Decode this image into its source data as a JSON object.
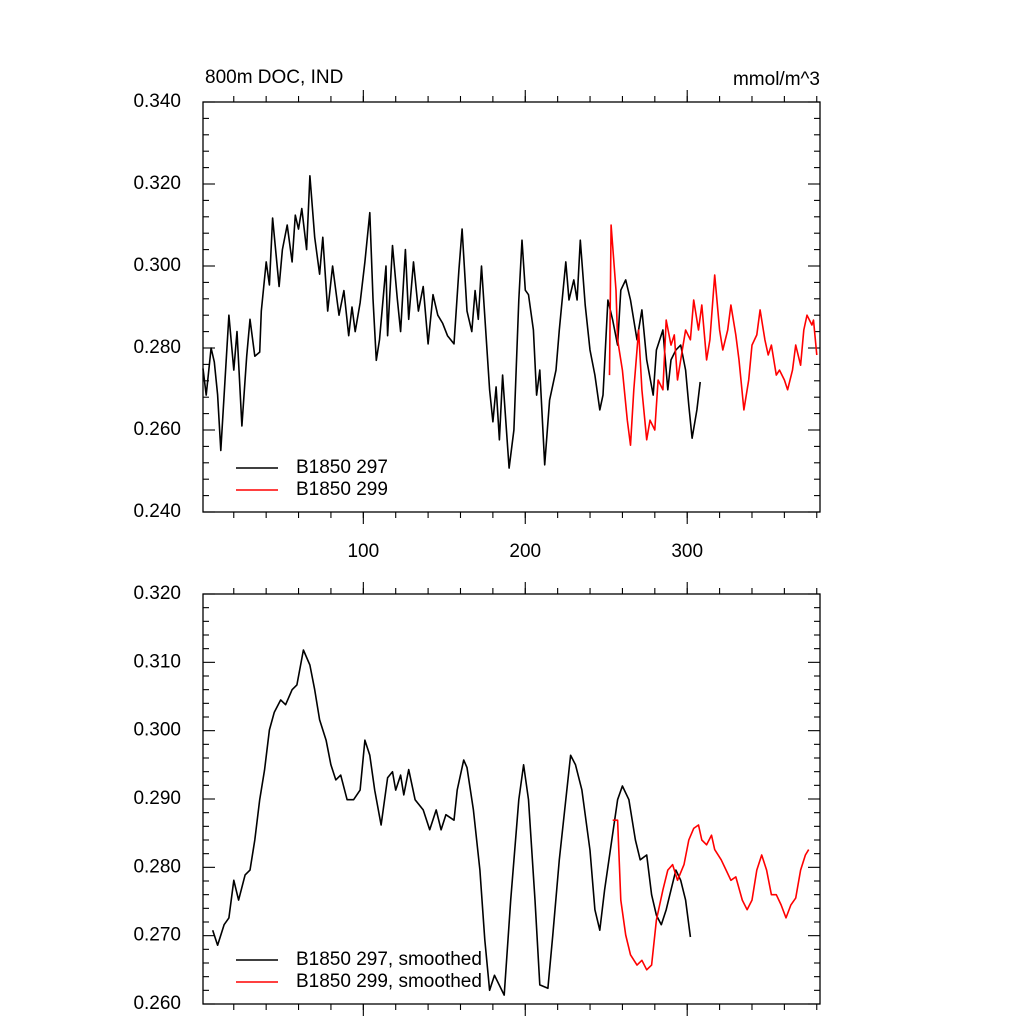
{
  "chart_data": [
    {
      "type": "line",
      "title": "800m DOC, IND",
      "units_label": "mmol/m^3",
      "xlim": [
        1,
        382
      ],
      "xticks": [
        100,
        200,
        300
      ],
      "show_xtick_labels": true,
      "ylim": [
        0.24,
        0.34
      ],
      "yticks": [
        {
          "value": 0.24,
          "label": "0.240"
        },
        {
          "value": 0.26,
          "label": "0.260"
        },
        {
          "value": 0.28,
          "label": "0.280"
        },
        {
          "value": 0.3,
          "label": "0.300"
        },
        {
          "value": 0.32,
          "label": "0.320"
        },
        {
          "value": 0.34,
          "label": "0.340"
        }
      ],
      "legend": "lower left",
      "series": [
        {
          "name": "B1850 297",
          "color": "#000000",
          "x": [
            1,
            3,
            6,
            8,
            10,
            12,
            17,
            20,
            22,
            25,
            28,
            30,
            33,
            36,
            37,
            40,
            42,
            44,
            48,
            50,
            53,
            56,
            58,
            60,
            62,
            65,
            67,
            70,
            73,
            75,
            78,
            81,
            85,
            88,
            91,
            93,
            95,
            98,
            101,
            104,
            106,
            108,
            110,
            114,
            115,
            118,
            121,
            123,
            126,
            128,
            131,
            134,
            137,
            140,
            143,
            146,
            149,
            152,
            156,
            159,
            161,
            164,
            167,
            169,
            171,
            173,
            178,
            180,
            182,
            184,
            186,
            190,
            193,
            196,
            198,
            200,
            202,
            205,
            207,
            209,
            212,
            215,
            219,
            221,
            225,
            227,
            230,
            232,
            234,
            237,
            240,
            243,
            246,
            248,
            251,
            254,
            257,
            259,
            262,
            265,
            269,
            272,
            275,
            279,
            281,
            285,
            288,
            290,
            293,
            296,
            299,
            301,
            303,
            306,
            308
          ],
          "values": [
            0.275,
            0.2685,
            0.28,
            0.2766,
            0.2686,
            0.255,
            0.288,
            0.2746,
            0.284,
            0.261,
            0.278,
            0.287,
            0.278,
            0.279,
            0.289,
            0.301,
            0.2954,
            0.3117,
            0.295,
            0.304,
            0.31,
            0.301,
            0.3124,
            0.309,
            0.314,
            0.304,
            0.322,
            0.307,
            0.298,
            0.307,
            0.289,
            0.3,
            0.288,
            0.294,
            0.283,
            0.29,
            0.284,
            0.291,
            0.301,
            0.313,
            0.292,
            0.277,
            0.282,
            0.3,
            0.283,
            0.305,
            0.292,
            0.284,
            0.304,
            0.287,
            0.301,
            0.289,
            0.295,
            0.281,
            0.293,
            0.288,
            0.286,
            0.283,
            0.281,
            0.299,
            0.309,
            0.289,
            0.284,
            0.294,
            0.287,
            0.3,
            0.2698,
            0.262,
            0.2705,
            0.2576,
            0.2734,
            0.2507,
            0.26,
            0.2917,
            0.3063,
            0.2941,
            0.293,
            0.2844,
            0.2685,
            0.2746,
            0.2515,
            0.2673,
            0.2746,
            0.2844,
            0.301,
            0.2917,
            0.2966,
            0.2917,
            0.3063,
            0.2905,
            0.2795,
            0.2734,
            0.2649,
            0.2685,
            0.2917,
            0.2868,
            0.2807,
            0.2941,
            0.2966,
            0.2917,
            0.282,
            0.2893,
            0.2771,
            0.2685,
            0.2795,
            0.2844,
            0.2698,
            0.2771,
            0.2795,
            0.2807,
            0.2746,
            0.266,
            0.258,
            0.2649,
            0.2717
          ]
        },
        {
          "name": "B1850 299",
          "color": "#ff0000",
          "x": [
            252,
            253,
            256,
            257,
            260,
            263,
            265,
            267,
            270,
            272,
            275,
            277,
            280,
            282,
            285,
            287,
            290,
            292,
            294,
            297,
            299,
            302,
            304,
            307,
            309,
            312,
            314,
            317,
            320,
            322,
            325,
            327,
            330,
            332,
            335,
            338,
            340,
            343,
            345,
            348,
            350,
            352,
            355,
            357,
            360,
            362,
            365,
            367,
            370,
            372,
            374,
            377,
            378,
            380
          ],
          "values": [
            0.2734,
            0.31,
            0.2941,
            0.282,
            0.2746,
            0.2624,
            0.2563,
            0.2698,
            0.2844,
            0.2698,
            0.2576,
            0.2624,
            0.26,
            0.2722,
            0.2698,
            0.2868,
            0.2807,
            0.2832,
            0.2722,
            0.2795,
            0.2844,
            0.282,
            0.2917,
            0.2844,
            0.2905,
            0.2771,
            0.282,
            0.2978,
            0.2844,
            0.2795,
            0.2844,
            0.2905,
            0.2832,
            0.2771,
            0.2649,
            0.2722,
            0.2807,
            0.2832,
            0.2893,
            0.282,
            0.2783,
            0.2807,
            0.2734,
            0.2746,
            0.2722,
            0.2698,
            0.2746,
            0.2807,
            0.2758,
            0.2844,
            0.288,
            0.2856,
            0.2868,
            0.2783
          ]
        }
      ]
    },
    {
      "type": "line",
      "xlim": [
        1,
        382
      ],
      "xticks": [
        100,
        200,
        300
      ],
      "show_xtick_labels": false,
      "ylim": [
        0.26,
        0.32
      ],
      "yticks": [
        {
          "value": 0.26,
          "label": "0.260"
        },
        {
          "value": 0.27,
          "label": "0.270"
        },
        {
          "value": 0.28,
          "label": "0.280"
        },
        {
          "value": 0.29,
          "label": "0.290"
        },
        {
          "value": 0.3,
          "label": "0.300"
        },
        {
          "value": 0.31,
          "label": "0.310"
        },
        {
          "value": 0.32,
          "label": "0.320"
        }
      ],
      "legend": "lower left",
      "series": [
        {
          "name": "B1850 297, smoothed",
          "color": "#000000",
          "x": [
            7,
            10,
            14,
            17,
            20,
            23,
            27,
            30,
            33,
            36,
            39,
            42,
            45,
            49,
            52,
            56,
            59,
            63,
            67,
            70,
            73,
            77,
            80,
            83,
            86,
            90,
            94,
            98,
            101,
            104,
            107,
            111,
            115,
            118,
            120,
            123,
            125,
            128,
            132,
            137,
            141,
            145,
            148,
            151,
            156,
            158,
            162,
            164,
            168,
            172,
            175,
            178,
            181,
            187,
            191,
            196,
            199,
            202,
            206,
            209,
            214,
            217,
            221,
            225,
            228,
            231,
            235,
            240,
            243,
            246,
            249,
            253,
            257,
            260,
            264,
            268,
            271,
            275,
            278,
            281,
            284,
            287,
            290,
            293,
            296,
            299,
            302
          ],
          "values": [
            0.2708,
            0.2686,
            0.2716,
            0.2726,
            0.2781,
            0.2752,
            0.2789,
            0.2796,
            0.284,
            0.2899,
            0.2942,
            0.3001,
            0.3027,
            0.3045,
            0.3038,
            0.306,
            0.3067,
            0.3118,
            0.3096,
            0.306,
            0.3016,
            0.2986,
            0.295,
            0.2928,
            0.2935,
            0.2899,
            0.2899,
            0.2913,
            0.2986,
            0.2964,
            0.2913,
            0.2862,
            0.2931,
            0.294,
            0.2913,
            0.2935,
            0.2906,
            0.2943,
            0.2899,
            0.2884,
            0.2855,
            0.2884,
            0.2855,
            0.2877,
            0.2869,
            0.2913,
            0.2957,
            0.2946,
            0.2884,
            0.2796,
            0.2694,
            0.262,
            0.2642,
            0.2613,
            0.2752,
            0.2899,
            0.295,
            0.2899,
            0.2752,
            0.2628,
            0.2623,
            0.2701,
            0.2811,
            0.2899,
            0.2964,
            0.295,
            0.2913,
            0.2825,
            0.2738,
            0.2708,
            0.2767,
            0.2833,
            0.2899,
            0.2919,
            0.2899,
            0.284,
            0.2811,
            0.2818,
            0.276,
            0.273,
            0.2716,
            0.2738,
            0.2767,
            0.2796,
            0.2781,
            0.2752,
            0.2698
          ]
        },
        {
          "name": "B1850 299, smoothed",
          "color": "#ff0000",
          "x": [
            254,
            257,
            259,
            262,
            265,
            269,
            272,
            275,
            278,
            281,
            285,
            288,
            291,
            294,
            298,
            301,
            304,
            307,
            309,
            312,
            315,
            317,
            321,
            324,
            327,
            330,
            334,
            337,
            340,
            343,
            346,
            349,
            352,
            355,
            358,
            361,
            364,
            367,
            370,
            373,
            375
          ],
          "values": [
            0.2869,
            0.2869,
            0.2752,
            0.2701,
            0.2672,
            0.2657,
            0.2664,
            0.265,
            0.2657,
            0.2723,
            0.2767,
            0.2796,
            0.2804,
            0.2781,
            0.2804,
            0.284,
            0.2857,
            0.2862,
            0.284,
            0.2833,
            0.2847,
            0.2826,
            0.2811,
            0.2796,
            0.2781,
            0.2786,
            0.2752,
            0.2738,
            0.2752,
            0.2796,
            0.2818,
            0.2796,
            0.276,
            0.276,
            0.2745,
            0.2726,
            0.2745,
            0.2755,
            0.2796,
            0.2818,
            0.2826
          ]
        }
      ]
    }
  ]
}
